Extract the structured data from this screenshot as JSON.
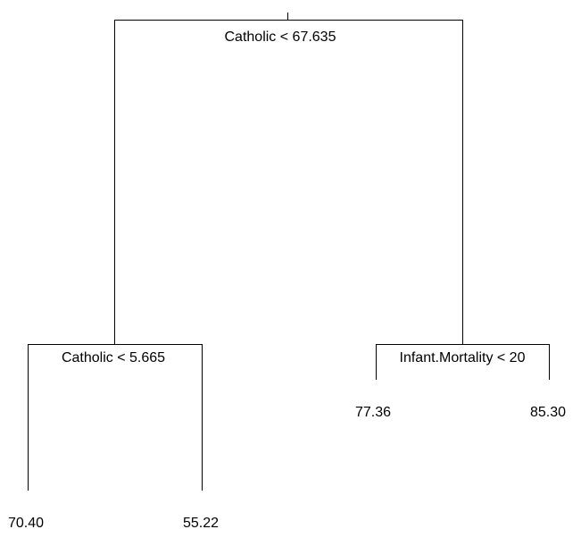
{
  "tree": {
    "root_split": {
      "label": "Catholic < 67.635"
    },
    "left_split": {
      "label": "Catholic < 5.665"
    },
    "right_split": {
      "label": "Infant.Mortality < 20"
    },
    "leaves": [
      {
        "value": "70.40"
      },
      {
        "value": "55.22"
      },
      {
        "value": "77.36"
      },
      {
        "value": "85.30"
      }
    ]
  },
  "colors": {
    "background": "#ffffff",
    "line": "#000000",
    "text": "#000000"
  }
}
